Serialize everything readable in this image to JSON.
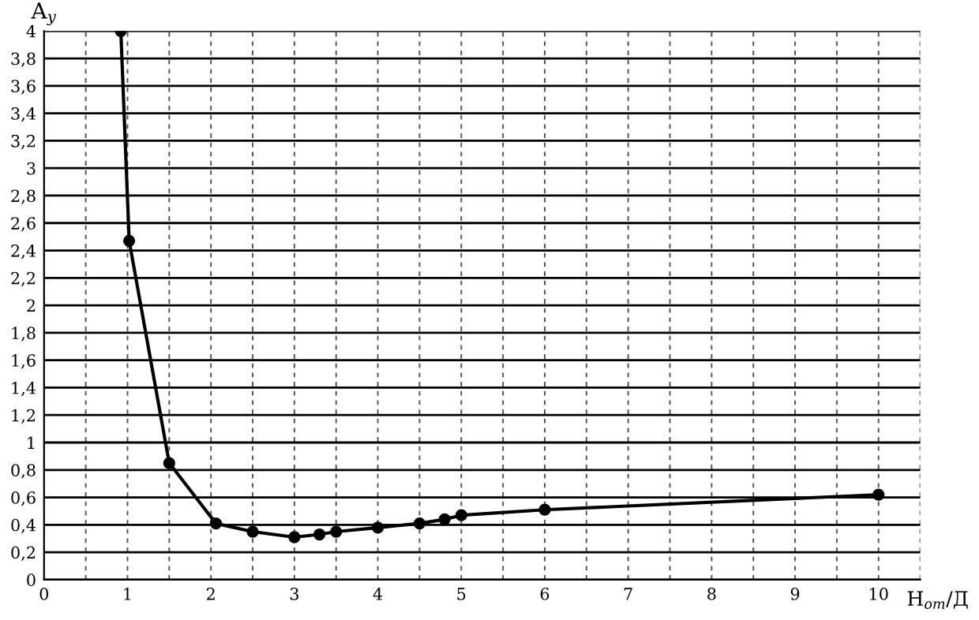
{
  "chart_data": {
    "type": "line",
    "xlabel": "H$_{от}$/Д",
    "ylabel": "A$_{у}$",
    "x": [
      0.92,
      1.02,
      1.5,
      2.06,
      2.5,
      3.0,
      3.3,
      3.5,
      4.0,
      4.5,
      4.8,
      5.0,
      6.0,
      10.0
    ],
    "series": [
      {
        "color": "#000000",
        "values": [
          4.0,
          2.47,
          0.85,
          0.41,
          0.35,
          0.31,
          0.33,
          0.35,
          0.38,
          0.41,
          0.44,
          0.47,
          0.51,
          0.62
        ]
      }
    ],
    "xlim": [
      0,
      10.5
    ],
    "ylim": [
      0,
      4
    ],
    "xticks": [
      0,
      {
        "value": 0.5,
        "label": null
      },
      1,
      {
        "value": 1.5,
        "label": null
      },
      2,
      {
        "value": 2.5,
        "label": null
      },
      3,
      {
        "value": 3.5,
        "label": null
      },
      4,
      {
        "value": 4.5,
        "label": null
      },
      5,
      {
        "value": 5.5,
        "label": null
      },
      6,
      {
        "value": 6.5,
        "label": null
      },
      7,
      {
        "value": 7.5,
        "label": null
      },
      8,
      {
        "value": 8.5,
        "label": null
      },
      9,
      {
        "value": 9.5,
        "label": null
      },
      10,
      {
        "value": 10.5,
        "label": null
      }
    ],
    "yticks": [
      0,
      {
        "value": 0.2,
        "label": "0,2"
      },
      {
        "value": 0.4,
        "label": "0,4"
      },
      {
        "value": 0.6,
        "label": "0,6"
      },
      {
        "value": 0.8,
        "label": "0,8"
      },
      1,
      {
        "value": 1.2,
        "label": "1,2"
      },
      {
        "value": 1.4,
        "label": "1,4"
      },
      {
        "value": 1.6,
        "label": "1,6"
      },
      {
        "value": 1.8,
        "label": "1,8"
      },
      2,
      {
        "value": 2.2,
        "label": "2,2"
      },
      {
        "value": 2.4,
        "label": "2,4"
      },
      {
        "value": 2.6,
        "label": "2,6"
      },
      {
        "value": 2.8,
        "label": "2,8"
      },
      3,
      {
        "value": 3.2,
        "label": "3,2"
      },
      {
        "value": 3.4,
        "label": "3,4"
      },
      {
        "value": 3.6,
        "label": "3,6"
      },
      {
        "value": 3.8,
        "label": "3,8"
      },
      4
    ],
    "grid": true,
    "marker": "circle",
    "line_style": "solid",
    "legend": false
  }
}
